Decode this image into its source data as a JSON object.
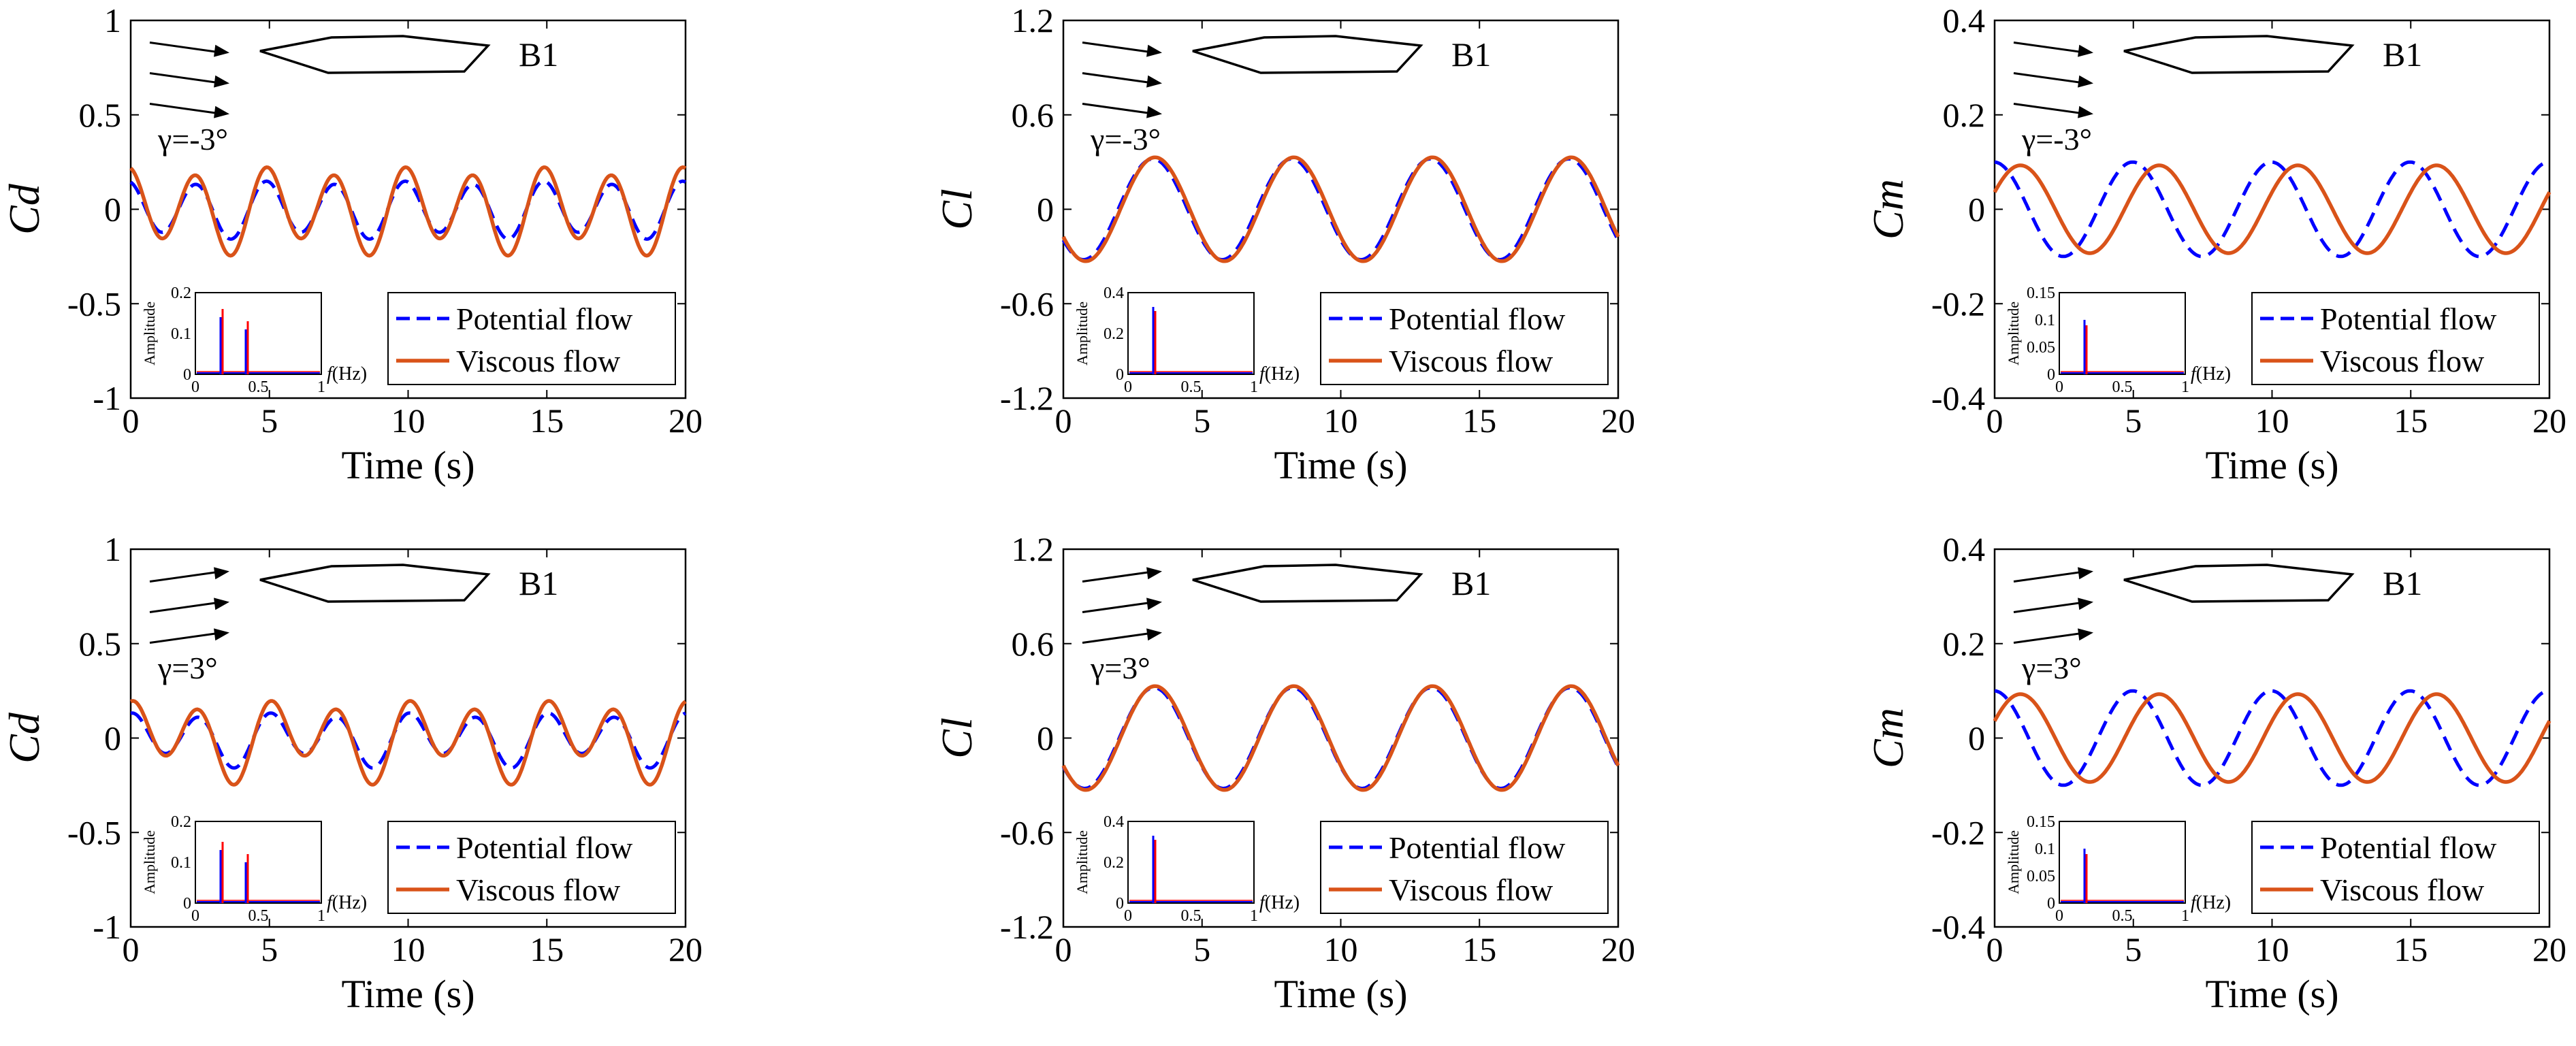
{
  "figure": {
    "legend_labels": [
      "Potential flow",
      "Viscous flow"
    ],
    "section_label": "B1",
    "inset_ylabel": "Amplitude",
    "inset_xlabel_italic": "f",
    "inset_xlabel_unit": "(Hz)"
  },
  "colors": {
    "potential": "#0000ff",
    "viscous": "#d95319",
    "inset_potential": "#0000ff",
    "inset_viscous": "#ff0000",
    "axis": "#000000"
  },
  "chart_data": [
    {
      "id": "cd-minus3",
      "type": "line",
      "ylabel": "Cd",
      "xlabel": "Time (s)",
      "gamma_label": "γ=-3°",
      "xlim": [
        0,
        20
      ],
      "xticks": [
        0,
        5,
        10,
        15,
        20
      ],
      "xtick_labels": [
        "0",
        "5",
        "10",
        "15",
        "20"
      ],
      "ylim": [
        -1,
        1
      ],
      "yticks": [
        -1,
        -0.5,
        0,
        0.5,
        1
      ],
      "ytick_labels": [
        "-1",
        "-0.5",
        "0",
        "0.5",
        "1"
      ],
      "series": [
        {
          "name": "Potential flow",
          "style": "dashed",
          "components": [
            {
              "amp": 0.02,
              "period": 5,
              "phase": 0.6
            },
            {
              "amp": 0.14,
              "period": 2.5,
              "phase": 1.9
            }
          ]
        },
        {
          "name": "Viscous flow",
          "style": "solid",
          "components": [
            {
              "amp": 0.05,
              "period": 5,
              "phase": 0.6
            },
            {
              "amp": 0.2,
              "period": 2.5,
              "phase": 1.9
            }
          ]
        }
      ],
      "inset": {
        "xlim": [
          0,
          1
        ],
        "xticks": [
          "0",
          "0.5",
          "1"
        ],
        "ylim": [
          0,
          0.2
        ],
        "yticks": [
          "0",
          "0.1",
          "0.2"
        ],
        "spikes": [
          {
            "f": 0.2,
            "potential": 0.14,
            "viscous": 0.16
          },
          {
            "f": 0.4,
            "potential": 0.11,
            "viscous": 0.13
          }
        ]
      }
    },
    {
      "id": "cl-minus3",
      "type": "line",
      "ylabel": "Cl",
      "xlabel": "Time (s)",
      "gamma_label": "γ=-3°",
      "xlim": [
        0,
        20
      ],
      "xticks": [
        0,
        5,
        10,
        15,
        20
      ],
      "xtick_labels": [
        "0",
        "5",
        "10",
        "15",
        "20"
      ],
      "ylim": [
        -1.2,
        1.2
      ],
      "yticks": [
        -1.2,
        -0.6,
        0,
        0.6,
        1.2
      ],
      "ytick_labels": [
        "-1.2",
        "-0.6",
        "0",
        "0.6",
        "1.2"
      ],
      "series": [
        {
          "name": "Potential flow",
          "style": "dashed",
          "components": [
            {
              "amp": 0.32,
              "period": 5,
              "phase": 3.8
            }
          ]
        },
        {
          "name": "Viscous flow",
          "style": "solid",
          "components": [
            {
              "amp": 0.33,
              "period": 5,
              "phase": 3.7
            }
          ]
        }
      ],
      "inset": {
        "xlim": [
          0,
          1
        ],
        "xticks": [
          "0",
          "0.5",
          "1"
        ],
        "ylim": [
          0,
          0.4
        ],
        "yticks": [
          "0",
          "0.2",
          "0.4"
        ],
        "spikes": [
          {
            "f": 0.2,
            "potential": 0.33,
            "viscous": 0.31
          }
        ]
      }
    },
    {
      "id": "cm-minus3",
      "type": "line",
      "ylabel": "Cm",
      "xlabel": "Time (s)",
      "gamma_label": "γ=-3°",
      "xlim": [
        0,
        20
      ],
      "xticks": [
        0,
        5,
        10,
        15,
        20
      ],
      "xtick_labels": [
        "0",
        "5",
        "10",
        "15",
        "20"
      ],
      "ylim": [
        -0.4,
        0.4
      ],
      "yticks": [
        -0.4,
        -0.2,
        0,
        0.2,
        0.4
      ],
      "ytick_labels": [
        "-0.4",
        "-0.2",
        "0",
        "0.2",
        "0.4"
      ],
      "series": [
        {
          "name": "Potential flow",
          "style": "dashed",
          "components": [
            {
              "amp": 0.1,
              "period": 5,
              "phase": 1.6
            }
          ]
        },
        {
          "name": "Viscous flow",
          "style": "solid",
          "components": [
            {
              "amp": 0.093,
              "period": 5,
              "phase": 0.4
            }
          ]
        }
      ],
      "inset": {
        "xlim": [
          0,
          1
        ],
        "xticks": [
          "0",
          "0.5",
          "1"
        ],
        "ylim": [
          0,
          0.15
        ],
        "yticks": [
          "0",
          "0.05",
          "0.1",
          "0.15"
        ],
        "spikes": [
          {
            "f": 0.2,
            "potential": 0.1,
            "viscous": 0.09
          }
        ]
      }
    },
    {
      "id": "cd-plus3",
      "type": "line",
      "ylabel": "Cd",
      "xlabel": "Time (s)",
      "gamma_label": "γ=3°",
      "xlim": [
        0,
        20
      ],
      "xticks": [
        0,
        5,
        10,
        15,
        20
      ],
      "xtick_labels": [
        "0",
        "5",
        "10",
        "15",
        "20"
      ],
      "ylim": [
        -1,
        1
      ],
      "yticks": [
        -1,
        -0.5,
        0,
        0.5,
        1
      ],
      "ytick_labels": [
        "-1",
        "-0.5",
        "0",
        "0.5",
        "1"
      ],
      "series": [
        {
          "name": "Potential flow",
          "style": "dashed",
          "components": [
            {
              "amp": 0.04,
              "period": 5,
              "phase": 0.3
            },
            {
              "amp": 0.12,
              "period": 2.5,
              "phase": 1.6
            }
          ]
        },
        {
          "name": "Viscous flow",
          "style": "solid",
          "components": [
            {
              "amp": 0.08,
              "period": 5,
              "phase": 0.3
            },
            {
              "amp": 0.17,
              "period": 2.5,
              "phase": 1.6
            }
          ]
        }
      ],
      "inset": {
        "xlim": [
          0,
          1
        ],
        "xticks": [
          "0",
          "0.5",
          "1"
        ],
        "ylim": [
          0,
          0.2
        ],
        "yticks": [
          "0",
          "0.1",
          "0.2"
        ],
        "spikes": [
          {
            "f": 0.2,
            "potential": 0.13,
            "viscous": 0.15
          },
          {
            "f": 0.4,
            "potential": 0.1,
            "viscous": 0.12
          }
        ]
      }
    },
    {
      "id": "cl-plus3",
      "type": "line",
      "ylabel": "Cl",
      "xlabel": "Time (s)",
      "gamma_label": "γ=3°",
      "xlim": [
        0,
        20
      ],
      "xticks": [
        0,
        5,
        10,
        15,
        20
      ],
      "xtick_labels": [
        "0",
        "5",
        "10",
        "15",
        "20"
      ],
      "ylim": [
        -1.2,
        1.2
      ],
      "yticks": [
        -1.2,
        -0.6,
        0,
        0.6,
        1.2
      ],
      "ytick_labels": [
        "-1.2",
        "-0.6",
        "0",
        "0.6",
        "1.2"
      ],
      "series": [
        {
          "name": "Potential flow",
          "style": "dashed",
          "components": [
            {
              "amp": 0.32,
              "period": 5,
              "phase": 3.75
            }
          ]
        },
        {
          "name": "Viscous flow",
          "style": "solid",
          "components": [
            {
              "amp": 0.33,
              "period": 5,
              "phase": 3.7
            }
          ]
        }
      ],
      "inset": {
        "xlim": [
          0,
          1
        ],
        "xticks": [
          "0",
          "0.5",
          "1"
        ],
        "ylim": [
          0,
          0.4
        ],
        "yticks": [
          "0",
          "0.2",
          "0.4"
        ],
        "spikes": [
          {
            "f": 0.2,
            "potential": 0.33,
            "viscous": 0.31
          }
        ]
      }
    },
    {
      "id": "cm-plus3",
      "type": "line",
      "ylabel": "Cm",
      "xlabel": "Time (s)",
      "gamma_label": "γ=3°",
      "xlim": [
        0,
        20
      ],
      "xticks": [
        0,
        5,
        10,
        15,
        20
      ],
      "xtick_labels": [
        "0",
        "5",
        "10",
        "15",
        "20"
      ],
      "ylim": [
        -0.4,
        0.4
      ],
      "yticks": [
        -0.4,
        -0.2,
        0,
        0.2,
        0.4
      ],
      "ytick_labels": [
        "-0.4",
        "-0.2",
        "0",
        "0.2",
        "0.4"
      ],
      "series": [
        {
          "name": "Potential flow",
          "style": "dashed",
          "components": [
            {
              "amp": 0.1,
              "period": 5,
              "phase": 1.6
            }
          ]
        },
        {
          "name": "Viscous flow",
          "style": "solid",
          "components": [
            {
              "amp": 0.093,
              "period": 5,
              "phase": 0.4
            }
          ]
        }
      ],
      "inset": {
        "xlim": [
          0,
          1
        ],
        "xticks": [
          "0",
          "0.5",
          "1"
        ],
        "ylim": [
          0,
          0.15
        ],
        "yticks": [
          "0",
          "0.05",
          "0.1",
          "0.15"
        ],
        "spikes": [
          {
            "f": 0.2,
            "potential": 0.1,
            "viscous": 0.09
          }
        ]
      }
    }
  ]
}
